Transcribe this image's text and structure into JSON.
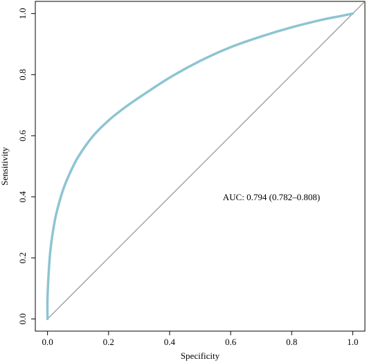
{
  "chart_data": {
    "type": "line",
    "xlabel": "Specificity",
    "ylabel": "Sensitivity",
    "xlim": [
      -0.04,
      1.04
    ],
    "ylim": [
      -0.04,
      1.04
    ],
    "x_ticks": [
      0.0,
      0.2,
      0.4,
      0.6,
      0.8,
      1.0
    ],
    "y_ticks": [
      0.0,
      0.2,
      0.4,
      0.6,
      0.8,
      1.0
    ],
    "x_tick_labels": [
      "0.0",
      "0.2",
      "0.4",
      "0.6",
      "0.8",
      "1.0"
    ],
    "y_tick_labels": [
      "0.0",
      "0.2",
      "0.4",
      "0.6",
      "0.8",
      "1.0"
    ],
    "grid": false,
    "annotation": "AUC: 0.794 (0.782–0.808)",
    "series": [
      {
        "color": "#8dc4d2",
        "x": [
          0.0,
          0.0,
          0.005,
          0.01,
          0.02,
          0.03,
          0.05,
          0.07,
          0.1,
          0.15,
          0.2,
          0.25,
          0.3,
          0.4,
          0.5,
          0.6,
          0.7,
          0.8,
          0.9,
          0.95,
          1.0
        ],
        "y": [
          0.0,
          0.07,
          0.17,
          0.23,
          0.3,
          0.35,
          0.42,
          0.47,
          0.53,
          0.6,
          0.65,
          0.69,
          0.725,
          0.79,
          0.845,
          0.89,
          0.925,
          0.955,
          0.98,
          0.99,
          1.0
        ]
      },
      {
        "color": "#808080",
        "x": [
          0.0,
          1.04
        ],
        "y": [
          0.0,
          1.04
        ]
      }
    ]
  }
}
